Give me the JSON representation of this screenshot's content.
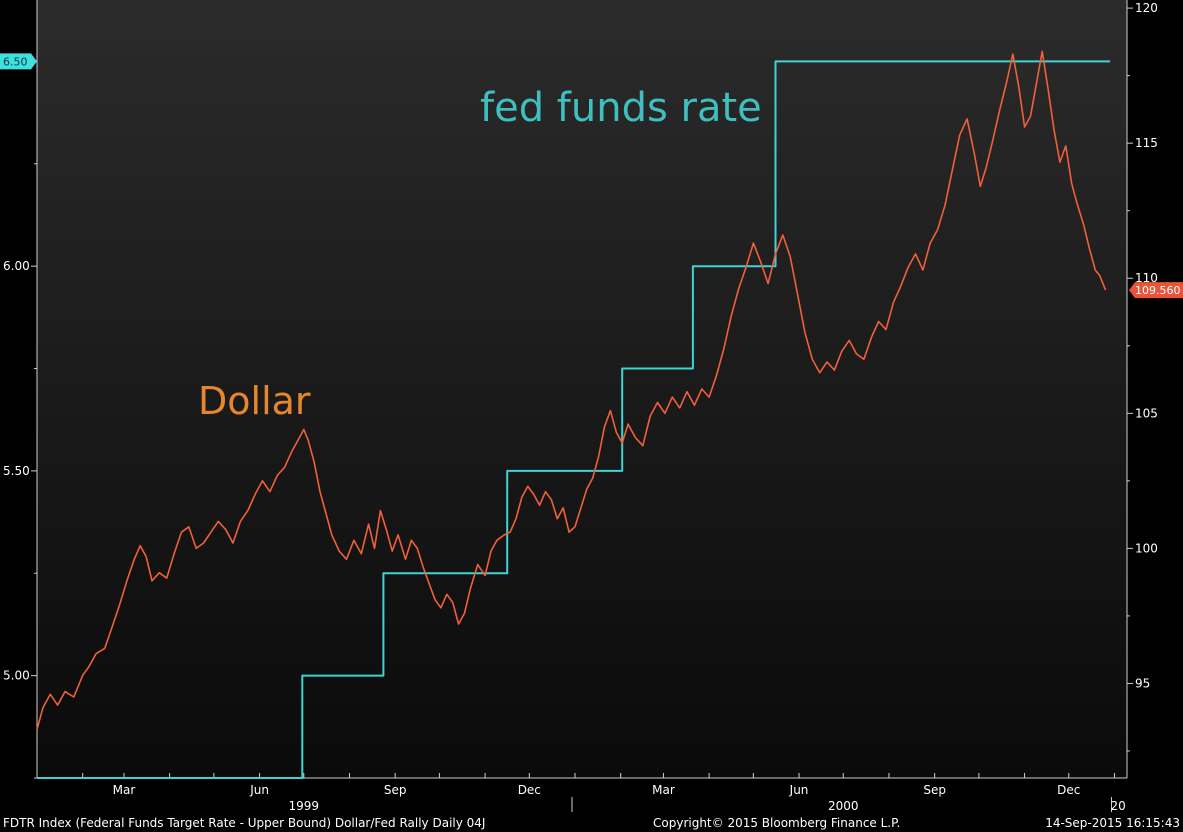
{
  "chart_data": {
    "type": "line",
    "title": "Dollar/Fed Rally",
    "axes": {
      "left": {
        "min": 4.75,
        "max": 6.65,
        "ticks": [
          5.0,
          5.5,
          6.0
        ],
        "tick_labels": [
          "5.00",
          "5.50",
          "6.00"
        ],
        "minor": [
          4.75,
          5.25,
          5.75,
          6.25
        ]
      },
      "right": {
        "min": 91.5,
        "max": 120.3,
        "ticks": [
          95,
          100,
          105,
          110,
          115,
          120
        ],
        "tick_labels": [
          "95",
          "100",
          "105",
          "110",
          "115",
          "120"
        ],
        "minor": [
          92.5,
          97.5,
          102.5,
          107.5,
          112.5,
          117.5
        ]
      },
      "x": {
        "start": "1999-01-01",
        "end": "2000-12-31",
        "month_labels": [
          {
            "date": "1999-03-01",
            "label": "Mar"
          },
          {
            "date": "1999-06-01",
            "label": "Jun"
          },
          {
            "date": "1999-09-01",
            "label": "Sep"
          },
          {
            "date": "1999-12-01",
            "label": "Dec"
          },
          {
            "date": "2000-03-01",
            "label": "Mar"
          },
          {
            "date": "2000-06-01",
            "label": "Jun"
          },
          {
            "date": "2000-09-01",
            "label": "Sep"
          },
          {
            "date": "2000-12-01",
            "label": "Dec"
          }
        ],
        "year_labels": [
          {
            "date": "1999-07-01",
            "label": "1999"
          },
          {
            "date": "2000-07-01",
            "label": "2000"
          },
          {
            "date": "2001-01-01",
            "label": "20"
          }
        ],
        "year_separators": [
          "2000-01-01",
          "2001-01-01"
        ]
      }
    },
    "series": [
      {
        "name": "fed funds rate",
        "axis": "left",
        "color": "#3fd3d3",
        "step": true,
        "points": [
          [
            "1999-01-01",
            4.75
          ],
          [
            "1999-06-30",
            5.0
          ],
          [
            "1999-08-24",
            5.25
          ],
          [
            "1999-11-16",
            5.5
          ],
          [
            "2000-02-02",
            5.75
          ],
          [
            "2000-03-21",
            6.0
          ],
          [
            "2000-05-16",
            6.5
          ],
          [
            "2000-12-29",
            6.5
          ]
        ],
        "last_value_label": "6.50"
      },
      {
        "name": "Dollar",
        "axis": "right",
        "color": "#f0603a",
        "step": false,
        "points": [
          [
            "1999-01-01",
            93.3
          ],
          [
            "1999-01-05",
            94.1
          ],
          [
            "1999-01-10",
            94.6
          ],
          [
            "1999-01-15",
            94.2
          ],
          [
            "1999-01-20",
            94.7
          ],
          [
            "1999-01-26",
            94.5
          ],
          [
            "1999-02-01",
            95.3
          ],
          [
            "1999-02-05",
            95.6
          ],
          [
            "1999-02-10",
            96.1
          ],
          [
            "1999-02-16",
            96.3
          ],
          [
            "1999-02-21",
            97.1
          ],
          [
            "1999-02-26",
            97.9
          ],
          [
            "1999-03-03",
            98.8
          ],
          [
            "1999-03-08",
            99.6
          ],
          [
            "1999-03-12",
            100.1
          ],
          [
            "1999-03-16",
            99.7
          ],
          [
            "1999-03-20",
            98.8
          ],
          [
            "1999-03-25",
            99.1
          ],
          [
            "1999-03-30",
            98.9
          ],
          [
            "1999-04-04",
            99.8
          ],
          [
            "1999-04-09",
            100.6
          ],
          [
            "1999-04-14",
            100.8
          ],
          [
            "1999-04-19",
            100.0
          ],
          [
            "1999-04-24",
            100.2
          ],
          [
            "1999-04-29",
            100.6
          ],
          [
            "1999-05-04",
            101.0
          ],
          [
            "1999-05-09",
            100.7
          ],
          [
            "1999-05-14",
            100.2
          ],
          [
            "1999-05-19",
            101.0
          ],
          [
            "1999-05-24",
            101.4
          ],
          [
            "1999-05-29",
            102.0
          ],
          [
            "1999-06-03",
            102.5
          ],
          [
            "1999-06-08",
            102.1
          ],
          [
            "1999-06-13",
            102.7
          ],
          [
            "1999-06-18",
            103.0
          ],
          [
            "1999-06-23",
            103.6
          ],
          [
            "1999-06-28",
            104.1
          ],
          [
            "1999-07-01",
            104.4
          ],
          [
            "1999-07-04",
            104.0
          ],
          [
            "1999-07-08",
            103.2
          ],
          [
            "1999-07-12",
            102.1
          ],
          [
            "1999-07-16",
            101.3
          ],
          [
            "1999-07-20",
            100.5
          ],
          [
            "1999-07-25",
            99.9
          ],
          [
            "1999-07-30",
            99.6
          ],
          [
            "1999-08-04",
            100.3
          ],
          [
            "1999-08-09",
            99.8
          ],
          [
            "1999-08-14",
            100.9
          ],
          [
            "1999-08-18",
            100.0
          ],
          [
            "1999-08-22",
            101.4
          ],
          [
            "1999-08-26",
            100.7
          ],
          [
            "1999-08-30",
            99.9
          ],
          [
            "1999-09-03",
            100.5
          ],
          [
            "1999-09-08",
            99.6
          ],
          [
            "1999-09-12",
            100.3
          ],
          [
            "1999-09-16",
            100.0
          ],
          [
            "1999-09-20",
            99.3
          ],
          [
            "1999-09-24",
            98.7
          ],
          [
            "1999-09-28",
            98.1
          ],
          [
            "1999-10-02",
            97.8
          ],
          [
            "1999-10-06",
            98.3
          ],
          [
            "1999-10-10",
            98.0
          ],
          [
            "1999-10-14",
            97.2
          ],
          [
            "1999-10-18",
            97.6
          ],
          [
            "1999-10-22",
            98.5
          ],
          [
            "1999-10-27",
            99.4
          ],
          [
            "1999-11-01",
            99.0
          ],
          [
            "1999-11-05",
            99.9
          ],
          [
            "1999-11-09",
            100.3
          ],
          [
            "1999-11-14",
            100.5
          ],
          [
            "1999-11-18",
            100.6
          ],
          [
            "1999-11-22",
            101.1
          ],
          [
            "1999-11-26",
            101.9
          ],
          [
            "1999-11-30",
            102.3
          ],
          [
            "1999-12-04",
            102.0
          ],
          [
            "1999-12-08",
            101.6
          ],
          [
            "1999-12-12",
            102.1
          ],
          [
            "1999-12-16",
            101.8
          ],
          [
            "1999-12-20",
            101.1
          ],
          [
            "1999-12-24",
            101.5
          ],
          [
            "1999-12-28",
            100.6
          ],
          [
            "2000-01-01",
            100.8
          ],
          [
            "2000-01-05",
            101.5
          ],
          [
            "2000-01-09",
            102.2
          ],
          [
            "2000-01-13",
            102.6
          ],
          [
            "2000-01-17",
            103.4
          ],
          [
            "2000-01-21",
            104.5
          ],
          [
            "2000-01-25",
            105.1
          ],
          [
            "2000-01-29",
            104.3
          ],
          [
            "2000-02-02",
            103.9
          ],
          [
            "2000-02-06",
            104.6
          ],
          [
            "2000-02-11",
            104.1
          ],
          [
            "2000-02-16",
            103.8
          ],
          [
            "2000-02-21",
            104.9
          ],
          [
            "2000-02-26",
            105.4
          ],
          [
            "2000-03-02",
            105.0
          ],
          [
            "2000-03-07",
            105.6
          ],
          [
            "2000-03-12",
            105.2
          ],
          [
            "2000-03-17",
            105.8
          ],
          [
            "2000-03-22",
            105.3
          ],
          [
            "2000-03-27",
            105.9
          ],
          [
            "2000-04-01",
            105.6
          ],
          [
            "2000-04-06",
            106.4
          ],
          [
            "2000-04-11",
            107.4
          ],
          [
            "2000-04-16",
            108.6
          ],
          [
            "2000-04-21",
            109.6
          ],
          [
            "2000-04-26",
            110.4
          ],
          [
            "2000-05-01",
            111.3
          ],
          [
            "2000-05-06",
            110.6
          ],
          [
            "2000-05-11",
            109.8
          ],
          [
            "2000-05-16",
            110.9
          ],
          [
            "2000-05-21",
            111.6
          ],
          [
            "2000-05-26",
            110.8
          ],
          [
            "2000-05-31",
            109.4
          ],
          [
            "2000-06-05",
            108.0
          ],
          [
            "2000-06-10",
            107.0
          ],
          [
            "2000-06-15",
            106.5
          ],
          [
            "2000-06-20",
            106.9
          ],
          [
            "2000-06-25",
            106.6
          ],
          [
            "2000-06-30",
            107.3
          ],
          [
            "2000-07-05",
            107.7
          ],
          [
            "2000-07-10",
            107.2
          ],
          [
            "2000-07-15",
            107.0
          ],
          [
            "2000-07-20",
            107.8
          ],
          [
            "2000-07-25",
            108.4
          ],
          [
            "2000-07-30",
            108.1
          ],
          [
            "2000-08-04",
            109.1
          ],
          [
            "2000-08-09",
            109.7
          ],
          [
            "2000-08-14",
            110.4
          ],
          [
            "2000-08-19",
            110.9
          ],
          [
            "2000-08-24",
            110.3
          ],
          [
            "2000-08-29",
            111.3
          ],
          [
            "2000-09-03",
            111.8
          ],
          [
            "2000-09-08",
            112.7
          ],
          [
            "2000-09-13",
            114.0
          ],
          [
            "2000-09-18",
            115.3
          ],
          [
            "2000-09-23",
            115.9
          ],
          [
            "2000-09-28",
            114.6
          ],
          [
            "2000-10-02",
            113.4
          ],
          [
            "2000-10-06",
            114.1
          ],
          [
            "2000-10-10",
            115.0
          ],
          [
            "2000-10-15",
            116.2
          ],
          [
            "2000-10-20",
            117.3
          ],
          [
            "2000-10-24",
            118.3
          ],
          [
            "2000-10-28",
            117.1
          ],
          [
            "2000-11-01",
            115.6
          ],
          [
            "2000-11-05",
            116.0
          ],
          [
            "2000-11-09",
            117.2
          ],
          [
            "2000-11-13",
            118.4
          ],
          [
            "2000-11-17",
            117.0
          ],
          [
            "2000-11-21",
            115.5
          ],
          [
            "2000-11-25",
            114.3
          ],
          [
            "2000-11-29",
            114.9
          ],
          [
            "2000-12-03",
            113.5
          ],
          [
            "2000-12-07",
            112.7
          ],
          [
            "2000-12-11",
            112.0
          ],
          [
            "2000-12-15",
            111.1
          ],
          [
            "2000-12-19",
            110.3
          ],
          [
            "2000-12-22",
            110.1
          ],
          [
            "2000-12-26",
            109.56
          ]
        ],
        "last_value_label": "109.560"
      }
    ],
    "annotations": [
      {
        "text": "Dollar",
        "color": "#e8862e"
      },
      {
        "text": "fed funds rate",
        "color": "#3fbfbf"
      }
    ]
  },
  "footer": {
    "left": "FDTR Index (Federal Funds Target Rate - Upper Bound) Dollar/Fed Rally  Daily 04J",
    "center": "Copyright© 2015 Bloomberg Finance L.P.",
    "right": "14-Sep-2015 16:15:43"
  }
}
